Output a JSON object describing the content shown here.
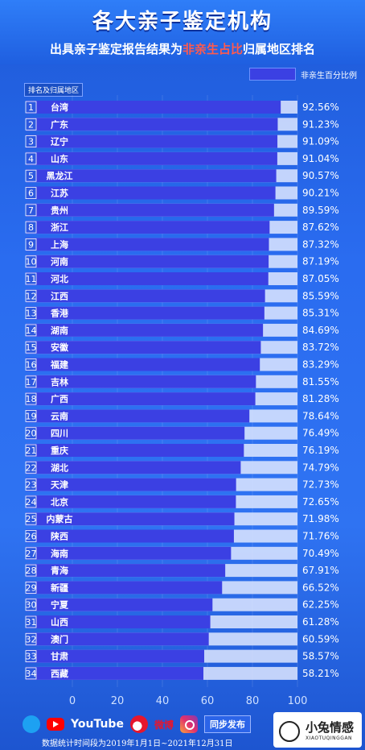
{
  "header": {
    "title": "各大亲子鉴定机构",
    "subtitle_pre": "出具亲子鉴定报告结果为",
    "subtitle_hl": "非亲生占比",
    "subtitle_post": "归属地区排名"
  },
  "legend_label": "非亲生百分比例",
  "rank_header": "排名及归属地区",
  "chart_data": {
    "type": "bar",
    "orientation": "horizontal",
    "categories": [
      "台湾",
      "广东",
      "辽宁",
      "山东",
      "黑龙江",
      "江苏",
      "贵州",
      "浙江",
      "上海",
      "河南",
      "河北",
      "江西",
      "香港",
      "湖南",
      "安徽",
      "福建",
      "吉林",
      "广西",
      "云南",
      "四川",
      "重庆",
      "湖北",
      "天津",
      "北京",
      "内蒙古",
      "陕西",
      "海南",
      "青海",
      "新疆",
      "宁夏",
      "山西",
      "澳门",
      "甘肃",
      "西藏"
    ],
    "ranks": [
      "1",
      "2",
      "3",
      "4",
      "5",
      "6",
      "7",
      "8",
      "9",
      "10",
      "11",
      "12",
      "13",
      "14",
      "15",
      "16",
      "17",
      "18",
      "19",
      "20",
      "21",
      "22",
      "23",
      "24",
      "25",
      "26",
      "27",
      "28",
      "29",
      "30",
      "31",
      "32",
      "33",
      "34"
    ],
    "values": [
      92.56,
      91.23,
      91.09,
      91.04,
      90.57,
      90.21,
      89.59,
      87.62,
      87.32,
      87.19,
      87.05,
      85.59,
      85.31,
      84.69,
      83.72,
      83.29,
      81.55,
      81.28,
      78.64,
      76.49,
      76.19,
      74.79,
      72.73,
      72.65,
      71.98,
      71.76,
      70.49,
      67.91,
      66.52,
      62.25,
      61.28,
      60.59,
      58.57,
      58.21
    ],
    "value_labels": [
      "92.56%",
      "91.23%",
      "91.09%",
      "91.04%",
      "90.57%",
      "90.21%",
      "89.59%",
      "87.62%",
      "87.32%",
      "87.19%",
      "87.05%",
      "85.59%",
      "85.31%",
      "84.69%",
      "83.72%",
      "83.29%",
      "81.55%",
      "81.28%",
      "78.64%",
      "76.49%",
      "76.19%",
      "74.79%",
      "72.73%",
      "72.65%",
      "71.98%",
      "71.76%",
      "70.49%",
      "67.91%",
      "66.52%",
      "62.25%",
      "61.28%",
      "60.59%",
      "58.57%",
      "58.21%"
    ],
    "xlim": [
      0,
      100
    ],
    "xticks": [
      "0",
      "20",
      "40",
      "60",
      "80",
      "100"
    ],
    "bar_color": "#3b40e3",
    "track_color": "#dfe8ff"
  },
  "footer": {
    "youtube": "YouTube",
    "weibo": "微博",
    "sync": "同步发布",
    "note": "数据统计时间段为2019年1月1日~2021年12月31日",
    "logo_cn": "小兔情感",
    "logo_en": "XIAOTUQINGGAN"
  }
}
